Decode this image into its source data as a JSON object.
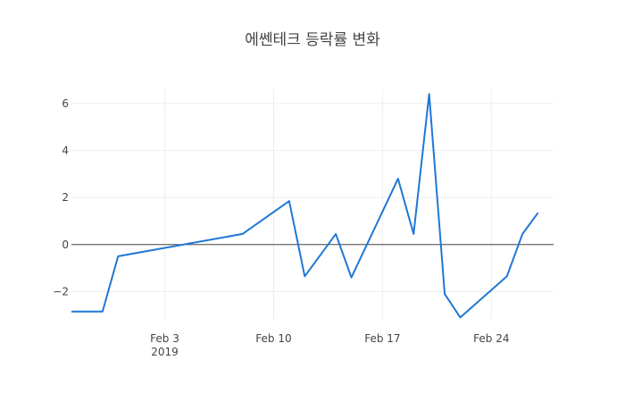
{
  "chart_data": {
    "type": "line",
    "title": "에쎈테크 등락률 변화",
    "xlabel": "",
    "ylabel": "",
    "x_range": [
      "2019-01-28",
      "2019-02-28"
    ],
    "ylim": [
      -3.2,
      6.6
    ],
    "grid": true,
    "zero_line": true,
    "line_color": "#1f77d4",
    "grid_color": "#eeeeee",
    "zero_line_color": "#444444",
    "x_ticks": [
      {
        "date": "2019-02-03",
        "label": "Feb 3",
        "sublabel": "2019"
      },
      {
        "date": "2019-02-10",
        "label": "Feb 10",
        "sublabel": ""
      },
      {
        "date": "2019-02-17",
        "label": "Feb 17",
        "sublabel": ""
      },
      {
        "date": "2019-02-24",
        "label": "Feb 24",
        "sublabel": ""
      }
    ],
    "y_ticks": [
      {
        "value": -2,
        "label": "−2"
      },
      {
        "value": 0,
        "label": "0"
      },
      {
        "value": 2,
        "label": "2"
      },
      {
        "value": 4,
        "label": "4"
      },
      {
        "value": 6,
        "label": "6"
      }
    ],
    "series": [
      {
        "points": [
          {
            "x": "2019-01-28",
            "y": -2.85
          },
          {
            "x": "2019-01-30",
            "y": -2.85
          },
          {
            "x": "2019-01-31",
            "y": -0.5
          },
          {
            "x": "2019-02-08",
            "y": 0.45
          },
          {
            "x": "2019-02-11",
            "y": 1.85
          },
          {
            "x": "2019-02-12",
            "y": -1.35
          },
          {
            "x": "2019-02-14",
            "y": 0.45
          },
          {
            "x": "2019-02-15",
            "y": -1.4
          },
          {
            "x": "2019-02-18",
            "y": 2.8
          },
          {
            "x": "2019-02-19",
            "y": 0.45
          },
          {
            "x": "2019-02-20",
            "y": 6.4
          },
          {
            "x": "2019-02-21",
            "y": -2.1
          },
          {
            "x": "2019-02-22",
            "y": -3.1
          },
          {
            "x": "2019-02-25",
            "y": -1.35
          },
          {
            "x": "2019-02-26",
            "y": 0.45
          },
          {
            "x": "2019-02-27",
            "y": 1.35
          }
        ]
      }
    ]
  }
}
